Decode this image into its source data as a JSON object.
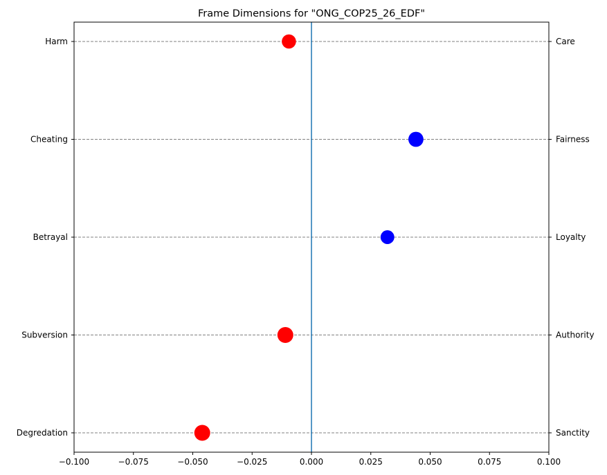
{
  "chart_data": {
    "type": "scatter",
    "title": "Frame Dimensions for \"ONG_COP25_26_EDF\"",
    "xlim": [
      -0.1,
      0.1
    ],
    "x_ticks": [
      -0.1,
      -0.075,
      -0.05,
      -0.025,
      0.0,
      0.025,
      0.05,
      0.075,
      0.1
    ],
    "x_tick_labels": [
      "−0.100",
      "−0.075",
      "−0.050",
      "−0.025",
      "0.000",
      "0.025",
      "0.050",
      "0.075",
      "0.100"
    ],
    "zero_line": 0.0,
    "grid": "horizontal dashed",
    "dimensions": [
      {
        "left_label": "Harm",
        "right_label": "Care",
        "value": -0.0095,
        "color": "#ff0000",
        "relative_size": 0.8
      },
      {
        "left_label": "Cheating",
        "right_label": "Fairness",
        "value": 0.044,
        "color": "#0000ff",
        "relative_size": 0.9
      },
      {
        "left_label": "Betrayal",
        "right_label": "Loyalty",
        "value": 0.032,
        "color": "#0000ff",
        "relative_size": 0.75
      },
      {
        "left_label": "Subversion",
        "right_label": "Authority",
        "value": -0.011,
        "color": "#ff0000",
        "relative_size": 1.0
      },
      {
        "left_label": "Degredation",
        "right_label": "Sanctity",
        "value": -0.046,
        "color": "#ff0000",
        "relative_size": 1.0
      }
    ],
    "colors": {
      "negative": "#ff0000",
      "positive": "#0000ff",
      "zero_line": "#1f77b4"
    }
  }
}
